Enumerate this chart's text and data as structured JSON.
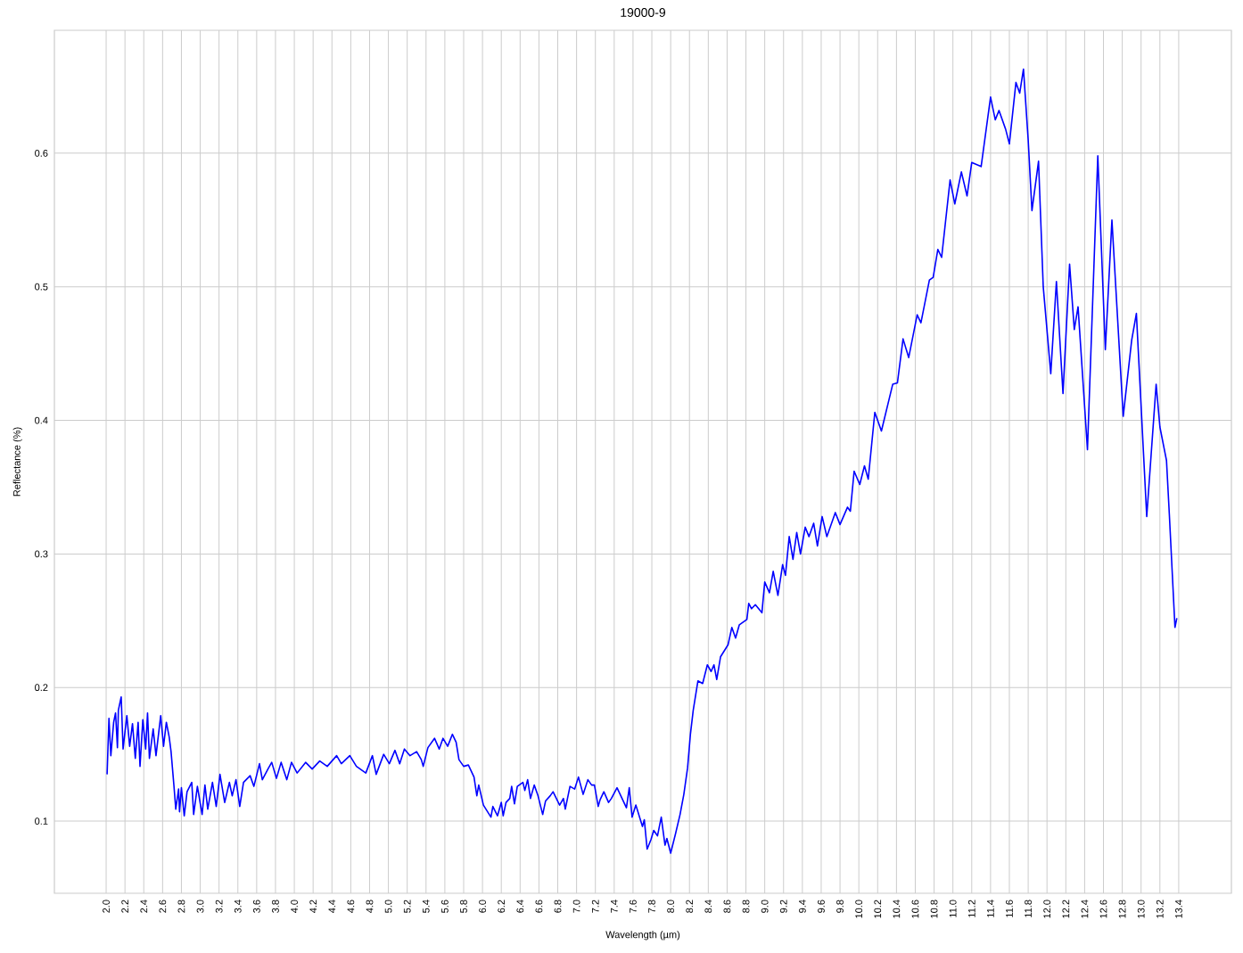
{
  "chart_data": {
    "type": "line",
    "title": "19000-9",
    "xlabel": "Wavelength (µm)",
    "ylabel": "Reflectance (%)",
    "color": "#0000ff",
    "grid": true,
    "xlim": [
      1.45,
      13.96
    ],
    "ylim": [
      0.046,
      0.692
    ],
    "xticks": [
      {
        "value": 2.0,
        "label": "2.0"
      },
      {
        "value": 2.2,
        "label": "2.2"
      },
      {
        "value": 2.4,
        "label": "2.4"
      },
      {
        "value": 2.6,
        "label": "2.6"
      },
      {
        "value": 2.8,
        "label": "2.8"
      },
      {
        "value": 3.0,
        "label": "3.0"
      },
      {
        "value": 3.2,
        "label": "3.2"
      },
      {
        "value": 3.4,
        "label": "3.4"
      },
      {
        "value": 3.6,
        "label": "3.6"
      },
      {
        "value": 3.8,
        "label": "3.8"
      },
      {
        "value": 4.0,
        "label": "4.0"
      },
      {
        "value": 4.2,
        "label": "4.2"
      },
      {
        "value": 4.4,
        "label": "4.4"
      },
      {
        "value": 4.6,
        "label": "4.6"
      },
      {
        "value": 4.8,
        "label": "4.8"
      },
      {
        "value": 5.0,
        "label": "5.0"
      },
      {
        "value": 5.2,
        "label": "5.2"
      },
      {
        "value": 5.4,
        "label": "5.4"
      },
      {
        "value": 5.6,
        "label": "5.6"
      },
      {
        "value": 5.8,
        "label": "5.8"
      },
      {
        "value": 6.0,
        "label": "6.0"
      },
      {
        "value": 6.2,
        "label": "6.2"
      },
      {
        "value": 6.4,
        "label": "6.4"
      },
      {
        "value": 6.6,
        "label": "6.6"
      },
      {
        "value": 6.8,
        "label": "6.8"
      },
      {
        "value": 7.0,
        "label": "7.0"
      },
      {
        "value": 7.2,
        "label": "7.2"
      },
      {
        "value": 7.4,
        "label": "7.4"
      },
      {
        "value": 7.6,
        "label": "7.6"
      },
      {
        "value": 7.8,
        "label": "7.8"
      },
      {
        "value": 8.0,
        "label": "8.0"
      },
      {
        "value": 8.2,
        "label": "8.2"
      },
      {
        "value": 8.4,
        "label": "8.4"
      },
      {
        "value": 8.6,
        "label": "8.6"
      },
      {
        "value": 8.8,
        "label": "8.8"
      },
      {
        "value": 9.0,
        "label": "9.0"
      },
      {
        "value": 9.2,
        "label": "9.2"
      },
      {
        "value": 9.4,
        "label": "9.4"
      },
      {
        "value": 9.6,
        "label": "9.6"
      },
      {
        "value": 9.8,
        "label": "9.8"
      },
      {
        "value": 10.0,
        "label": "10.0"
      },
      {
        "value": 10.2,
        "label": "10.2"
      },
      {
        "value": 10.4,
        "label": "10.4"
      },
      {
        "value": 10.6,
        "label": "10.6"
      },
      {
        "value": 10.8,
        "label": "10.8"
      },
      {
        "value": 11.0,
        "label": "11.0"
      },
      {
        "value": 11.2,
        "label": "11.2"
      },
      {
        "value": 11.4,
        "label": "11.4"
      },
      {
        "value": 11.6,
        "label": "11.6"
      },
      {
        "value": 11.8,
        "label": "11.8"
      },
      {
        "value": 12.0,
        "label": "12.0"
      },
      {
        "value": 12.2,
        "label": "12.2"
      },
      {
        "value": 12.4,
        "label": "12.4"
      },
      {
        "value": 12.6,
        "label": "12.6"
      },
      {
        "value": 12.8,
        "label": "12.8"
      },
      {
        "value": 13.0,
        "label": "13.0"
      },
      {
        "value": 13.2,
        "label": "13.2"
      },
      {
        "value": 13.4,
        "label": "13.4"
      }
    ],
    "yticks": [
      0.1,
      0.2,
      0.3,
      0.4,
      0.5,
      0.6
    ],
    "x": [
      2.01,
      2.03,
      2.05,
      2.08,
      2.1,
      2.12,
      2.13,
      2.16,
      2.18,
      2.22,
      2.25,
      2.28,
      2.31,
      2.34,
      2.36,
      2.39,
      2.42,
      2.44,
      2.46,
      2.5,
      2.53,
      2.58,
      2.61,
      2.64,
      2.67,
      2.69,
      2.72,
      2.74,
      2.77,
      2.78,
      2.8,
      2.83,
      2.86,
      2.91,
      2.93,
      2.97,
      3.02,
      3.05,
      3.08,
      3.13,
      3.17,
      3.21,
      3.26,
      3.31,
      3.34,
      3.38,
      3.42,
      3.46,
      3.53,
      3.57,
      3.63,
      3.66,
      3.72,
      3.76,
      3.81,
      3.86,
      3.92,
      3.97,
      4.03,
      4.12,
      4.19,
      4.27,
      4.35,
      4.45,
      4.5,
      4.59,
      4.66,
      4.76,
      4.83,
      4.87,
      4.95,
      5.01,
      5.07,
      5.12,
      5.17,
      5.23,
      5.3,
      5.35,
      5.37,
      5.42,
      5.49,
      5.54,
      5.58,
      5.63,
      5.68,
      5.72,
      5.75,
      5.8,
      5.85,
      5.91,
      5.94,
      5.96,
      6.01,
      6.09,
      6.11,
      6.16,
      6.2,
      6.22,
      6.25,
      6.29,
      6.31,
      6.34,
      6.37,
      6.43,
      6.45,
      6.48,
      6.51,
      6.55,
      6.59,
      6.64,
      6.67,
      6.72,
      6.75,
      6.82,
      6.86,
      6.88,
      6.93,
      6.98,
      7.02,
      7.07,
      7.12,
      7.16,
      7.19,
      7.23,
      7.25,
      7.29,
      7.34,
      7.37,
      7.43,
      7.47,
      7.53,
      7.56,
      7.59,
      7.63,
      7.7,
      7.72,
      7.75,
      7.79,
      7.82,
      7.86,
      7.9,
      7.94,
      7.96,
      8.0,
      8.05,
      8.1,
      8.14,
      8.18,
      8.21,
      8.24,
      8.29,
      8.34,
      8.39,
      8.43,
      8.46,
      8.49,
      8.53,
      8.61,
      8.65,
      8.69,
      8.73,
      8.81,
      8.83,
      8.86,
      8.9,
      8.97,
      9.0,
      9.05,
      9.09,
      9.14,
      9.19,
      9.22,
      9.26,
      9.3,
      9.34,
      9.38,
      9.43,
      9.47,
      9.52,
      9.56,
      9.61,
      9.66,
      9.71,
      9.75,
      9.8,
      9.88,
      9.91,
      9.95,
      10.01,
      10.06,
      10.1,
      10.17,
      10.24,
      10.36,
      10.41,
      10.47,
      10.53,
      10.62,
      10.66,
      10.75,
      10.79,
      10.84,
      10.88,
      10.97,
      11.02,
      11.09,
      11.15,
      11.2,
      11.3,
      11.4,
      11.45,
      11.49,
      11.56,
      11.6,
      11.67,
      11.71,
      11.75,
      11.8,
      11.84,
      11.91,
      11.96,
      12.04,
      12.1,
      12.17,
      12.24,
      12.29,
      12.33,
      12.43,
      12.54,
      12.62,
      12.69,
      12.81,
      12.9,
      12.95,
      13.06,
      13.16,
      13.2,
      13.27,
      13.3,
      13.36,
      13.38
    ],
    "values": [
      0.135,
      0.177,
      0.149,
      0.174,
      0.181,
      0.155,
      0.183,
      0.193,
      0.154,
      0.179,
      0.156,
      0.173,
      0.147,
      0.174,
      0.141,
      0.176,
      0.154,
      0.181,
      0.147,
      0.169,
      0.149,
      0.179,
      0.156,
      0.174,
      0.163,
      0.152,
      0.127,
      0.109,
      0.124,
      0.107,
      0.125,
      0.104,
      0.122,
      0.129,
      0.105,
      0.126,
      0.105,
      0.127,
      0.109,
      0.129,
      0.111,
      0.135,
      0.114,
      0.129,
      0.119,
      0.131,
      0.111,
      0.129,
      0.134,
      0.126,
      0.143,
      0.131,
      0.139,
      0.144,
      0.132,
      0.144,
      0.131,
      0.144,
      0.136,
      0.144,
      0.139,
      0.145,
      0.141,
      0.149,
      0.143,
      0.149,
      0.141,
      0.136,
      0.149,
      0.135,
      0.15,
      0.143,
      0.153,
      0.143,
      0.154,
      0.149,
      0.152,
      0.146,
      0.141,
      0.155,
      0.162,
      0.154,
      0.162,
      0.156,
      0.165,
      0.159,
      0.146,
      0.141,
      0.142,
      0.133,
      0.119,
      0.127,
      0.112,
      0.103,
      0.111,
      0.104,
      0.114,
      0.104,
      0.114,
      0.117,
      0.126,
      0.113,
      0.126,
      0.129,
      0.123,
      0.131,
      0.117,
      0.127,
      0.119,
      0.105,
      0.115,
      0.119,
      0.122,
      0.112,
      0.117,
      0.109,
      0.126,
      0.124,
      0.133,
      0.12,
      0.131,
      0.127,
      0.127,
      0.111,
      0.116,
      0.122,
      0.114,
      0.117,
      0.125,
      0.119,
      0.11,
      0.125,
      0.103,
      0.112,
      0.096,
      0.101,
      0.079,
      0.086,
      0.093,
      0.089,
      0.103,
      0.082,
      0.087,
      0.076,
      0.09,
      0.105,
      0.12,
      0.14,
      0.165,
      0.183,
      0.205,
      0.203,
      0.217,
      0.212,
      0.217,
      0.206,
      0.223,
      0.232,
      0.245,
      0.237,
      0.247,
      0.251,
      0.263,
      0.259,
      0.262,
      0.256,
      0.279,
      0.271,
      0.287,
      0.269,
      0.292,
      0.284,
      0.313,
      0.296,
      0.316,
      0.3,
      0.32,
      0.313,
      0.323,
      0.306,
      0.328,
      0.313,
      0.323,
      0.331,
      0.322,
      0.335,
      0.332,
      0.362,
      0.352,
      0.366,
      0.356,
      0.406,
      0.392,
      0.427,
      0.428,
      0.461,
      0.447,
      0.479,
      0.473,
      0.505,
      0.507,
      0.528,
      0.522,
      0.58,
      0.562,
      0.586,
      0.568,
      0.593,
      0.59,
      0.642,
      0.625,
      0.632,
      0.618,
      0.607,
      0.653,
      0.645,
      0.663,
      0.61,
      0.557,
      0.594,
      0.5,
      0.435,
      0.504,
      0.42,
      0.517,
      0.468,
      0.485,
      0.378,
      0.598,
      0.453,
      0.55,
      0.403,
      0.46,
      0.48,
      0.328,
      0.427,
      0.395,
      0.37,
      0.33,
      0.245,
      0.252
    ]
  }
}
